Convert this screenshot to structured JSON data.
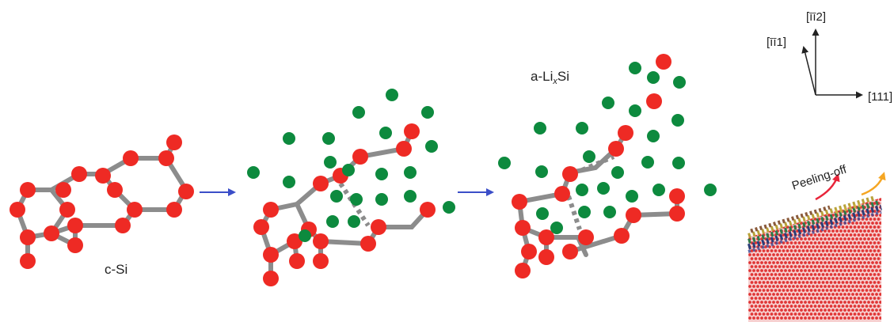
{
  "labels": {
    "crystalline": "c-Si",
    "amorphous_prefix": "a-Li",
    "amorphous_sub": "x",
    "amorphous_suffix": "Si",
    "peeling": "Peeling-off"
  },
  "axes": {
    "up": "[īī2]",
    "left": "[īī1]",
    "right": "[111]"
  },
  "colors": {
    "silicon": "#ee2a24",
    "lithium": "#0d8a3e",
    "bond": "#8c8c8c",
    "process_arrow": "#3b4ec8",
    "peel_arrow_1": "#e8253a",
    "peel_arrow_2": "#f5a623"
  },
  "icons": {
    "transition": "right-arrow-icon",
    "peel": "curved-arrow-icon"
  }
}
